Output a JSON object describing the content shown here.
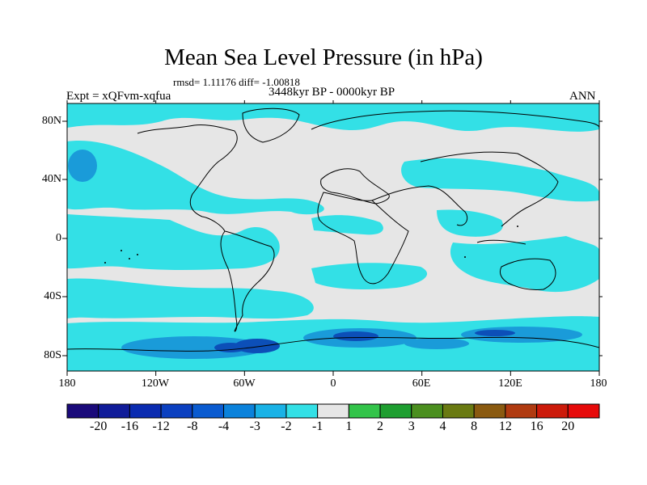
{
  "title": "Mean Sea Level Pressure (in hPa)",
  "stats": "rmsd= 1.11176 diff= -1.00818",
  "subtitle": "3448kyr BP - 0000kyr BP",
  "experiment": "Expt = xQFvm-xqfua",
  "season": "ANN",
  "map": {
    "lon_labels": [
      "180",
      "120W",
      "60W",
      "0",
      "60E",
      "120E",
      "180"
    ],
    "lat_labels": [
      "80N",
      "40N",
      "0",
      "40S",
      "80S"
    ],
    "colors": {
      "ocean_neg": "#33e0e6",
      "neutral": "#e6e6e6",
      "mid_neg": "#1a9bd9",
      "deep_neg": "#0c4fb8",
      "coast": "#000000"
    }
  },
  "colorbar": {
    "labels": [
      "-20",
      "-16",
      "-12",
      "-8",
      "-4",
      "-3",
      "-2",
      "-1",
      "1",
      "2",
      "3",
      "4",
      "8",
      "12",
      "16",
      "20"
    ],
    "colors": [
      "#1a0a7a",
      "#101c99",
      "#0a2bb0",
      "#0b40c0",
      "#0a5bd0",
      "#0b82db",
      "#19b2e6",
      "#33e0e6",
      "#e6e6e6",
      "#33c44a",
      "#1e9e30",
      "#4b8f1f",
      "#6a7a12",
      "#8a5a10",
      "#b03a10",
      "#cc1a0a",
      "#e60a0a"
    ]
  }
}
